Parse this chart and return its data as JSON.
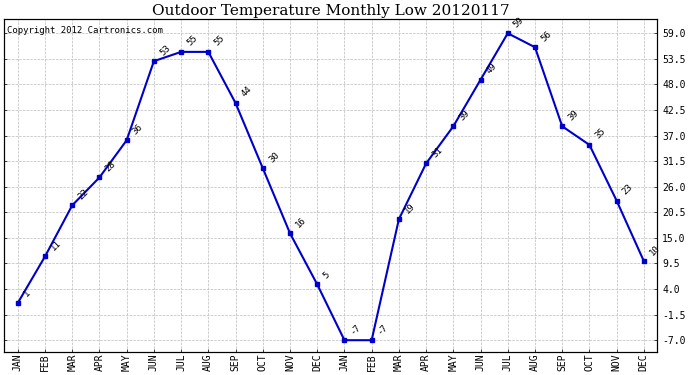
{
  "title": "Outdoor Temperature Monthly Low 20120117",
  "copyright_text": "Copyright 2012 Cartronics.com",
  "x_labels": [
    "JAN",
    "FEB",
    "MAR",
    "APR",
    "MAY",
    "JUN",
    "JUL",
    "AUG",
    "SEP",
    "OCT",
    "NOV",
    "DEC",
    "JAN",
    "FEB",
    "MAR",
    "APR",
    "MAY",
    "JUN",
    "JUL",
    "AUG",
    "SEP",
    "OCT",
    "NOV",
    "DEC"
  ],
  "y_values": [
    1,
    11,
    22,
    28,
    36,
    53,
    55,
    55,
    44,
    30,
    16,
    5,
    -7,
    -7,
    19,
    31,
    39,
    49,
    59,
    56,
    39,
    35,
    23,
    10
  ],
  "y_ticks": [
    -7.0,
    -1.5,
    4.0,
    9.5,
    15.0,
    20.5,
    26.0,
    31.5,
    37.0,
    42.5,
    48.0,
    53.5,
    59.0
  ],
  "ylim": [
    -9.5,
    62
  ],
  "line_color": "#0000cc",
  "marker_color": "#0000cc",
  "bg_color": "#ffffff",
  "plot_bg_color": "#ffffff",
  "grid_color": "#bbbbbb",
  "title_fontsize": 11,
  "tick_fontsize": 7,
  "label_fontsize": 6.5,
  "copyright_fontsize": 6.5,
  "marker_size": 3,
  "line_width": 1.5
}
